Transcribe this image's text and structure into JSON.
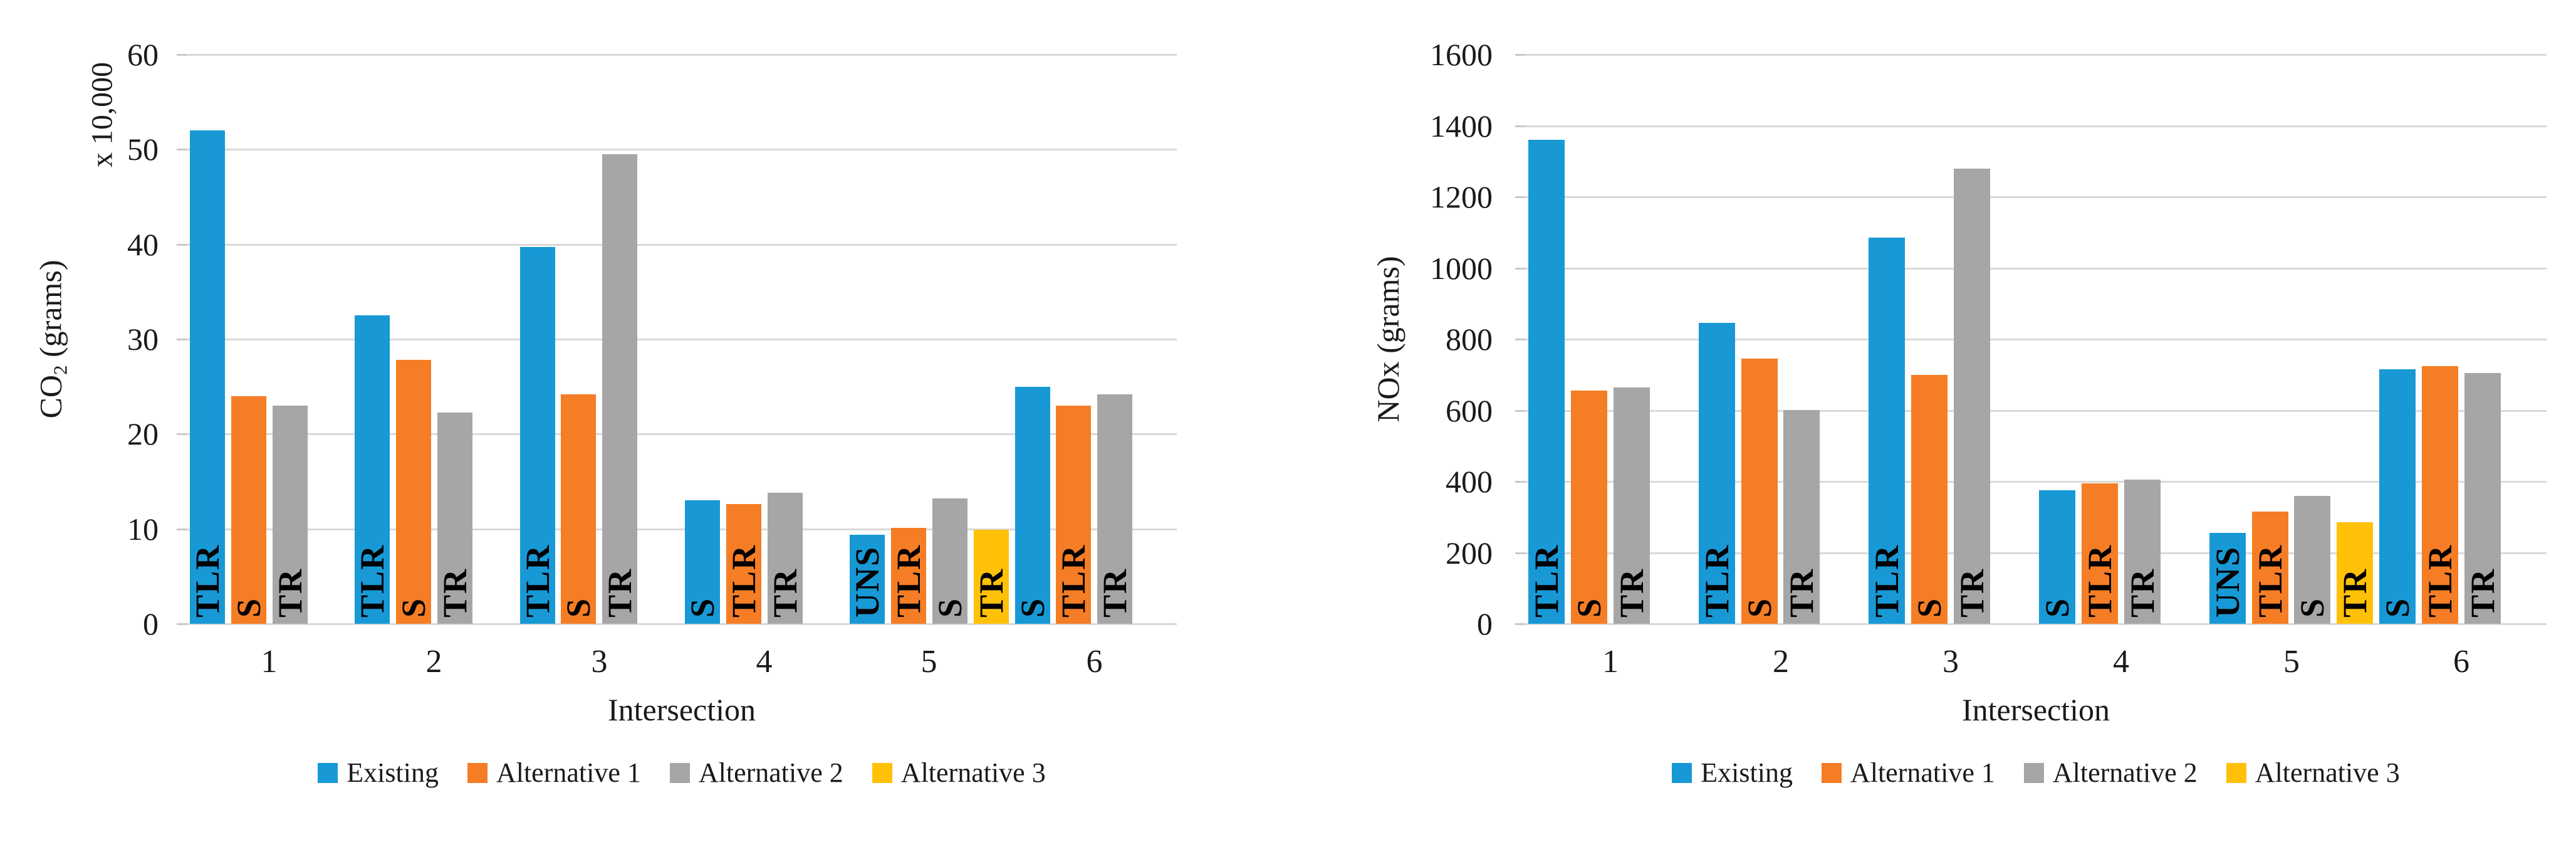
{
  "page": {
    "background": "#FFFFFF"
  },
  "colors": {
    "gridline": "#D9D9D9",
    "tick_mark": "#C9C9C9",
    "axis_text": "#1A1A1A",
    "bar_label_text": "#000000",
    "series_blue": "#1899D6",
    "series_orange": "#F57D25",
    "series_gray": "#A6A6A6",
    "series_yellow": "#FFC107"
  },
  "legend": {
    "position": "bottom",
    "items": [
      {
        "label": "Existing",
        "color": "#1899D6"
      },
      {
        "label": "Alternative 1",
        "color": "#F57D25"
      },
      {
        "label": "Alternative 2",
        "color": "#A6A6A6"
      },
      {
        "label": "Alternative 3",
        "color": "#FFC107"
      }
    ]
  },
  "chart_data": [
    {
      "type": "bar",
      "id": "co2",
      "title": "",
      "ylabel": {
        "pre": "CO",
        "sub": "2",
        "post": " (grams)"
      },
      "y_axis_multiplier": "x 10,000",
      "xlabel": "Intersection",
      "ylim": [
        0,
        60
      ],
      "ytick_step": 10,
      "yticks": [
        "0",
        "10",
        "20",
        "30",
        "40",
        "50",
        "60"
      ],
      "categories": [
        "1",
        "2",
        "3",
        "4",
        "5",
        "6"
      ],
      "grid": "horizontal",
      "groups": [
        {
          "category": "1",
          "bars": [
            {
              "series": 0,
              "label": "TLR",
              "value": 52
            },
            {
              "series": 1,
              "label": "S",
              "value": 24
            },
            {
              "series": 2,
              "label": "TR",
              "value": 23
            }
          ]
        },
        {
          "category": "2",
          "bars": [
            {
              "series": 0,
              "label": "TLR",
              "value": 32.5
            },
            {
              "series": 1,
              "label": "S",
              "value": 27.8
            },
            {
              "series": 2,
              "label": "TR",
              "value": 22.3
            }
          ]
        },
        {
          "category": "3",
          "bars": [
            {
              "series": 0,
              "label": "TLR",
              "value": 39.7
            },
            {
              "series": 1,
              "label": "S",
              "value": 24.2
            },
            {
              "series": 2,
              "label": "TR",
              "value": 49.5
            }
          ]
        },
        {
          "category": "4",
          "bars": [
            {
              "series": 0,
              "label": "S",
              "value": 13
            },
            {
              "series": 1,
              "label": "TLR",
              "value": 12.6
            },
            {
              "series": 2,
              "label": "TR",
              "value": 13.8
            }
          ]
        },
        {
          "category": "5",
          "bars": [
            {
              "series": 0,
              "label": "UNS",
              "value": 9.4
            },
            {
              "series": 1,
              "label": "TLR",
              "value": 10.1
            },
            {
              "series": 2,
              "label": "S",
              "value": 13.2
            },
            {
              "series": 3,
              "label": "TR",
              "value": 9.9
            }
          ]
        },
        {
          "category": "6",
          "bars": [
            {
              "series": 0,
              "label": "S",
              "value": 25
            },
            {
              "series": 1,
              "label": "TLR",
              "value": 23
            },
            {
              "series": 2,
              "label": "TR",
              "value": 24.2
            }
          ]
        }
      ]
    },
    {
      "type": "bar",
      "id": "nox",
      "title": "",
      "ylabel": {
        "pre": "NOx",
        "sub": "",
        "post": " (grams)"
      },
      "y_axis_multiplier": "",
      "xlabel": "Intersection",
      "ylim": [
        0,
        1600
      ],
      "ytick_step": 200,
      "yticks": [
        "0",
        "200",
        "400",
        "600",
        "800",
        "1000",
        "1200",
        "1400",
        "1600"
      ],
      "categories": [
        "1",
        "2",
        "3",
        "4",
        "5",
        "6"
      ],
      "grid": "horizontal",
      "groups": [
        {
          "category": "1",
          "bars": [
            {
              "series": 0,
              "label": "TLR",
              "value": 1360
            },
            {
              "series": 1,
              "label": "S",
              "value": 655
            },
            {
              "series": 2,
              "label": "TR",
              "value": 665
            }
          ]
        },
        {
          "category": "2",
          "bars": [
            {
              "series": 0,
              "label": "TLR",
              "value": 845
            },
            {
              "series": 1,
              "label": "S",
              "value": 745
            },
            {
              "series": 2,
              "label": "TR",
              "value": 600
            }
          ]
        },
        {
          "category": "3",
          "bars": [
            {
              "series": 0,
              "label": "TLR",
              "value": 1085
            },
            {
              "series": 1,
              "label": "S",
              "value": 700
            },
            {
              "series": 2,
              "label": "TR",
              "value": 1280
            }
          ]
        },
        {
          "category": "4",
          "bars": [
            {
              "series": 0,
              "label": "S",
              "value": 375
            },
            {
              "series": 1,
              "label": "TLR",
              "value": 395
            },
            {
              "series": 2,
              "label": "TR",
              "value": 405
            }
          ]
        },
        {
          "category": "5",
          "bars": [
            {
              "series": 0,
              "label": "UNS",
              "value": 255
            },
            {
              "series": 1,
              "label": "TLR",
              "value": 315
            },
            {
              "series": 2,
              "label": "S",
              "value": 360
            },
            {
              "series": 3,
              "label": "TR",
              "value": 285
            }
          ]
        },
        {
          "category": "6",
          "bars": [
            {
              "series": 0,
              "label": "S",
              "value": 715
            },
            {
              "series": 1,
              "label": "TLR",
              "value": 725
            },
            {
              "series": 2,
              "label": "TR",
              "value": 705
            }
          ]
        }
      ]
    }
  ]
}
